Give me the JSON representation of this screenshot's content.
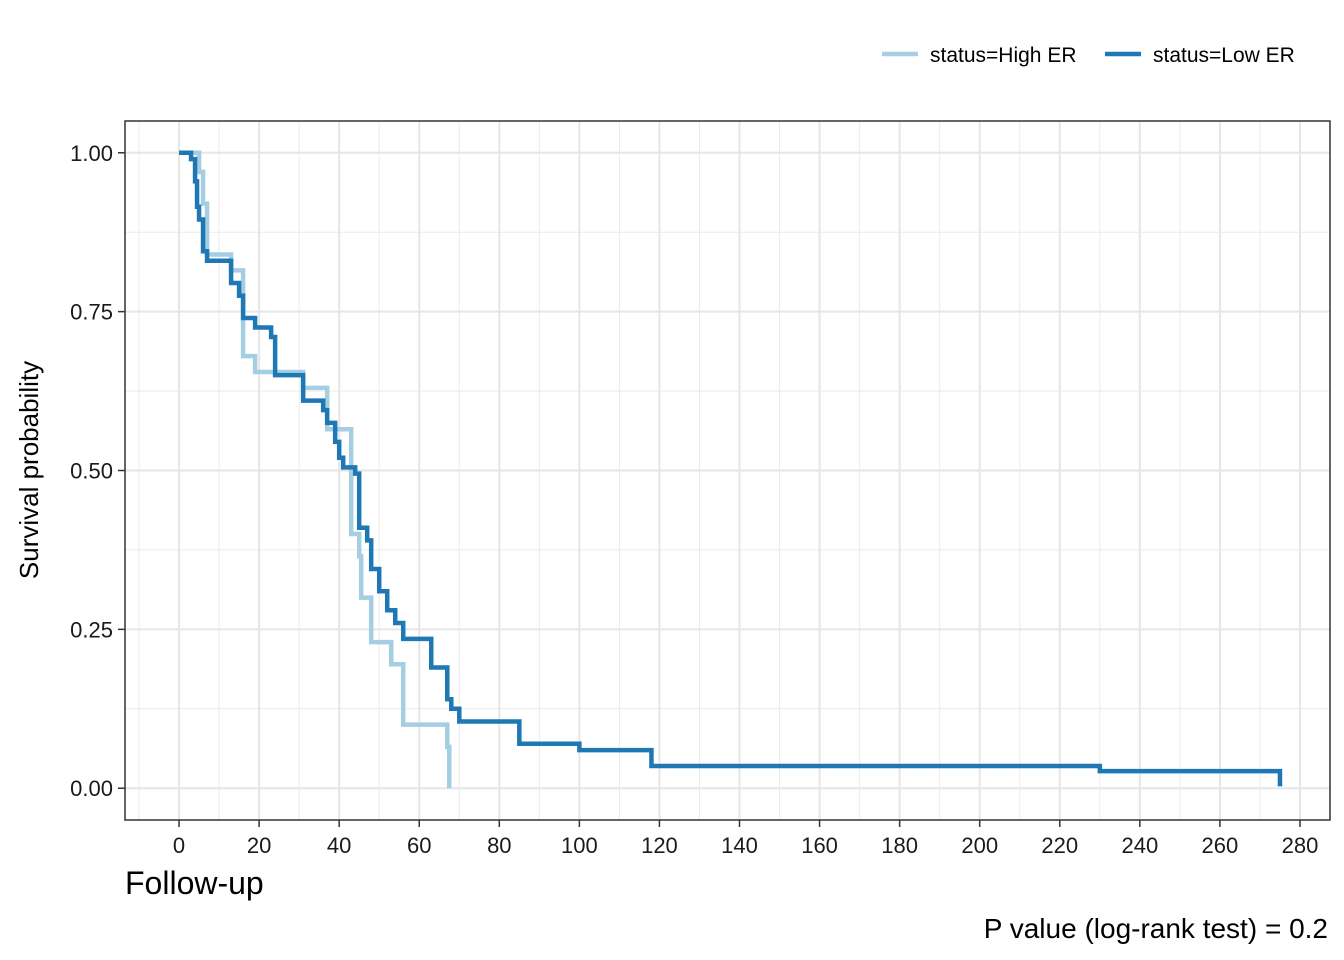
{
  "chart_data": {
    "type": "line",
    "subtype": "kaplan-meier",
    "xlabel": "Follow-up",
    "ylabel": "Survival probability",
    "caption": "P value (log-rank test) = 0.2",
    "xlim": [
      -13.5,
      287.5
    ],
    "ylim": [
      -0.05,
      1.05
    ],
    "x_ticks": [
      0,
      20,
      40,
      60,
      80,
      100,
      120,
      140,
      160,
      180,
      200,
      220,
      240,
      260,
      280
    ],
    "x_tick_labels": [
      "0",
      "20",
      "40",
      "60",
      "80",
      "100",
      "120",
      "140",
      "160",
      "180",
      "200",
      "220",
      "240",
      "260",
      "280"
    ],
    "y_ticks": [
      0,
      0.25,
      0.5,
      0.75,
      1.0
    ],
    "y_tick_labels": [
      "0.00",
      "0.25",
      "0.50",
      "0.75",
      "1.00"
    ],
    "grid": true,
    "legend_position": "top-right",
    "series": [
      {
        "name": "status=High ER",
        "color": "#a6cee3",
        "points": [
          [
            0,
            1.0
          ],
          [
            5,
            1.0
          ],
          [
            5,
            0.97
          ],
          [
            6,
            0.97
          ],
          [
            6,
            0.92
          ],
          [
            7,
            0.92
          ],
          [
            7,
            0.84
          ],
          [
            13,
            0.84
          ],
          [
            13,
            0.815
          ],
          [
            16,
            0.815
          ],
          [
            16,
            0.68
          ],
          [
            19,
            0.68
          ],
          [
            19,
            0.655
          ],
          [
            31,
            0.655
          ],
          [
            31,
            0.63
          ],
          [
            37,
            0.63
          ],
          [
            37,
            0.565
          ],
          [
            43,
            0.565
          ],
          [
            43,
            0.4
          ],
          [
            45,
            0.4
          ],
          [
            45,
            0.365
          ],
          [
            45.5,
            0.365
          ],
          [
            45.5,
            0.3
          ],
          [
            48,
            0.3
          ],
          [
            48,
            0.23
          ],
          [
            53,
            0.23
          ],
          [
            53,
            0.195
          ],
          [
            56,
            0.195
          ],
          [
            56,
            0.1
          ],
          [
            67,
            0.1
          ],
          [
            67,
            0.065
          ],
          [
            67.5,
            0.065
          ],
          [
            67.5,
            0.0
          ]
        ]
      },
      {
        "name": "status=Low ER",
        "color": "#1f78b4",
        "points": [
          [
            0,
            1.0
          ],
          [
            3,
            1.0
          ],
          [
            3,
            0.99
          ],
          [
            4,
            0.99
          ],
          [
            4,
            0.955
          ],
          [
            4.5,
            0.955
          ],
          [
            4.5,
            0.915
          ],
          [
            5,
            0.915
          ],
          [
            5,
            0.895
          ],
          [
            6,
            0.895
          ],
          [
            6,
            0.845
          ],
          [
            7,
            0.845
          ],
          [
            7,
            0.83
          ],
          [
            13,
            0.83
          ],
          [
            13,
            0.795
          ],
          [
            15,
            0.795
          ],
          [
            15,
            0.775
          ],
          [
            16,
            0.775
          ],
          [
            16,
            0.74
          ],
          [
            19,
            0.74
          ],
          [
            19,
            0.725
          ],
          [
            23,
            0.725
          ],
          [
            23,
            0.71
          ],
          [
            24,
            0.71
          ],
          [
            24,
            0.65
          ],
          [
            31,
            0.65
          ],
          [
            31,
            0.61
          ],
          [
            36,
            0.61
          ],
          [
            36,
            0.595
          ],
          [
            37,
            0.595
          ],
          [
            37,
            0.575
          ],
          [
            39,
            0.575
          ],
          [
            39,
            0.545
          ],
          [
            40,
            0.545
          ],
          [
            40,
            0.52
          ],
          [
            41,
            0.52
          ],
          [
            41,
            0.505
          ],
          [
            44,
            0.505
          ],
          [
            44,
            0.495
          ],
          [
            45,
            0.495
          ],
          [
            45,
            0.41
          ],
          [
            47,
            0.41
          ],
          [
            47,
            0.39
          ],
          [
            48,
            0.39
          ],
          [
            48,
            0.345
          ],
          [
            50,
            0.345
          ],
          [
            50,
            0.31
          ],
          [
            52,
            0.31
          ],
          [
            52,
            0.28
          ],
          [
            54,
            0.28
          ],
          [
            54,
            0.26
          ],
          [
            56,
            0.26
          ],
          [
            56,
            0.235
          ],
          [
            63,
            0.235
          ],
          [
            63,
            0.19
          ],
          [
            67,
            0.19
          ],
          [
            67,
            0.14
          ],
          [
            68,
            0.14
          ],
          [
            68,
            0.125
          ],
          [
            70,
            0.125
          ],
          [
            70,
            0.105
          ],
          [
            85,
            0.105
          ],
          [
            85,
            0.07
          ],
          [
            100,
            0.07
          ],
          [
            100,
            0.06
          ],
          [
            118,
            0.06
          ],
          [
            118,
            0.035
          ],
          [
            230,
            0.035
          ],
          [
            230,
            0.027
          ],
          [
            275,
            0.027
          ],
          [
            275,
            0.003
          ]
        ]
      }
    ]
  }
}
